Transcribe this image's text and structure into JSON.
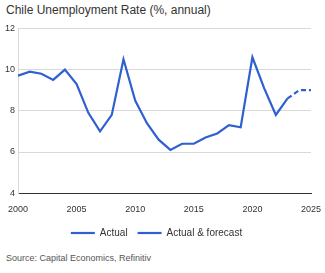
{
  "chart_data": {
    "type": "line",
    "title": "Chile Unemployment Rate (%, annual)",
    "source": "Source: Capital Economics, Refinitiv",
    "x": [
      2000,
      2001,
      2002,
      2003,
      2004,
      2005,
      2006,
      2007,
      2008,
      2009,
      2010,
      2011,
      2012,
      2013,
      2014,
      2015,
      2016,
      2017,
      2018,
      2019,
      2020,
      2021,
      2022,
      2023,
      2024,
      2025
    ],
    "series": [
      {
        "name": "Actual",
        "color": "#2f5fd0",
        "line_style": "solid",
        "marker": "none",
        "values": [
          9.7,
          9.9,
          9.8,
          9.5,
          10.0,
          9.3,
          7.9,
          7.0,
          7.8,
          10.5,
          8.5,
          7.4,
          6.6,
          6.1,
          6.4,
          6.4,
          6.7,
          6.9,
          7.3,
          7.2,
          10.6,
          9.1,
          7.8,
          8.6,
          null,
          null
        ]
      },
      {
        "name": "Actual & forecast",
        "color": "#2f5fd0",
        "line_style": "dashed",
        "marker": "none",
        "values": [
          null,
          null,
          null,
          null,
          null,
          null,
          null,
          null,
          null,
          null,
          null,
          null,
          null,
          null,
          null,
          null,
          null,
          null,
          null,
          null,
          null,
          null,
          null,
          8.6,
          9.0,
          9.0
        ]
      }
    ],
    "xlim": [
      2000,
      2025
    ],
    "xticks": [
      2000,
      2005,
      2010,
      2015,
      2020,
      2025
    ],
    "ylim": [
      4,
      12
    ],
    "yticks": [
      4,
      6,
      8,
      10,
      12
    ],
    "grid": true,
    "legend": "bottom"
  }
}
